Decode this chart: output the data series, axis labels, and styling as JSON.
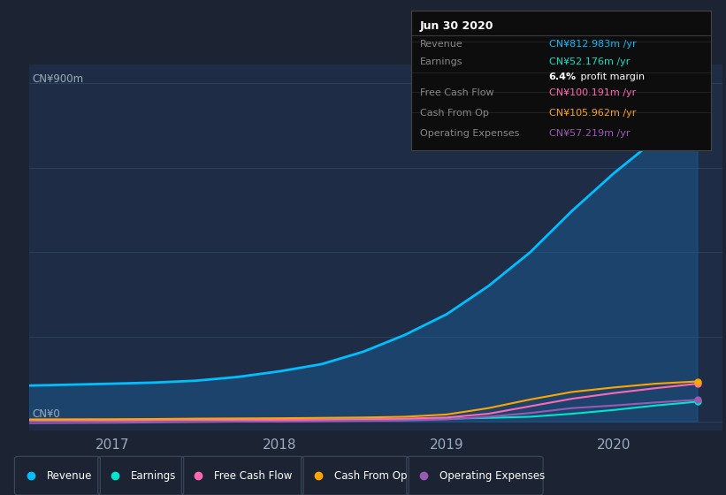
{
  "bg_color": "#1c2333",
  "chart_bg": "#1e2d45",
  "title_label": "CN¥900m",
  "zero_label": "CN¥0",
  "grid_color": "#2a3a55",
  "series": {
    "Revenue": {
      "color": "#00bfff",
      "fill_alpha": 0.45,
      "fill_color": "#1a5f9a",
      "x": [
        2016.5,
        2017.0,
        2017.25,
        2017.5,
        2017.75,
        2018.0,
        2018.25,
        2018.5,
        2018.75,
        2019.0,
        2019.25,
        2019.5,
        2019.75,
        2020.0,
        2020.25,
        2020.5
      ],
      "y": [
        95,
        100,
        103,
        108,
        118,
        133,
        152,
        185,
        230,
        285,
        360,
        450,
        560,
        660,
        750,
        813
      ]
    },
    "Earnings": {
      "color": "#00e5cc",
      "x": [
        2016.5,
        2017.0,
        2017.25,
        2017.5,
        2017.75,
        2018.0,
        2018.25,
        2018.5,
        2018.75,
        2019.0,
        2019.25,
        2019.5,
        2019.75,
        2020.0,
        2020.25,
        2020.5
      ],
      "y": [
        3,
        3.5,
        3.5,
        4,
        4,
        4.5,
        5,
        5.5,
        6,
        7,
        9,
        12,
        20,
        30,
        42,
        52
      ]
    },
    "Free Cash Flow": {
      "color": "#ff69b4",
      "x": [
        2016.5,
        2017.0,
        2017.25,
        2017.5,
        2017.75,
        2018.0,
        2018.25,
        2018.5,
        2018.75,
        2019.0,
        2019.25,
        2019.5,
        2019.75,
        2020.0,
        2020.25,
        2020.5
      ],
      "y": [
        2,
        2,
        2.5,
        3,
        3,
        3.5,
        4,
        5,
        7,
        10,
        20,
        40,
        60,
        75,
        88,
        100
      ]
    },
    "Cash From Op": {
      "color": "#ffa500",
      "x": [
        2016.5,
        2017.0,
        2017.25,
        2017.5,
        2017.75,
        2018.0,
        2018.25,
        2018.5,
        2018.75,
        2019.0,
        2019.25,
        2019.5,
        2019.75,
        2020.0,
        2020.25,
        2020.5
      ],
      "y": [
        5,
        5.5,
        6,
        7,
        7.5,
        8,
        9,
        10,
        12,
        18,
        35,
        58,
        78,
        90,
        100,
        106
      ]
    },
    "Operating Expenses": {
      "color": "#9b59b6",
      "x": [
        2016.5,
        2017.0,
        2017.25,
        2017.5,
        2017.75,
        2018.0,
        2018.25,
        2018.5,
        2018.75,
        2019.0,
        2019.25,
        2019.5,
        2019.75,
        2020.0,
        2020.25,
        2020.5
      ],
      "y": [
        -5,
        -4,
        -3,
        -2,
        -1,
        -1,
        0,
        1,
        2,
        5,
        12,
        22,
        35,
        42,
        50,
        57
      ]
    }
  },
  "xmin": 2016.5,
  "xmax": 2020.65,
  "ymin": -25,
  "ymax": 950,
  "xticks": [
    2017,
    2018,
    2019,
    2020
  ],
  "info_box": {
    "title": "Jun 30 2020",
    "rows": [
      {
        "label": "Revenue",
        "value": "CN¥812.983m /yr",
        "value_color": "#00bfff",
        "has_divider": false
      },
      {
        "label": "Earnings",
        "value": "CN¥52.176m /yr",
        "value_color": "#00e5cc",
        "has_divider": true
      },
      {
        "label": "",
        "value": "6.4% profit margin",
        "value_color": "#ffffff",
        "has_divider": false,
        "bold_part": "6.4%"
      },
      {
        "label": "Free Cash Flow",
        "value": "CN¥100.191m /yr",
        "value_color": "#ff69b4",
        "has_divider": true
      },
      {
        "label": "Cash From Op",
        "value": "CN¥105.962m /yr",
        "value_color": "#ffa500",
        "has_divider": true
      },
      {
        "label": "Operating Expenses",
        "value": "CN¥57.219m /yr",
        "value_color": "#9b59b6",
        "has_divider": true
      }
    ]
  },
  "legend": [
    {
      "label": "Revenue",
      "color": "#00bfff"
    },
    {
      "label": "Earnings",
      "color": "#00e5cc"
    },
    {
      "label": "Free Cash Flow",
      "color": "#ff69b4"
    },
    {
      "label": "Cash From Op",
      "color": "#ffa500"
    },
    {
      "label": "Operating Expenses",
      "color": "#9b59b6"
    }
  ]
}
